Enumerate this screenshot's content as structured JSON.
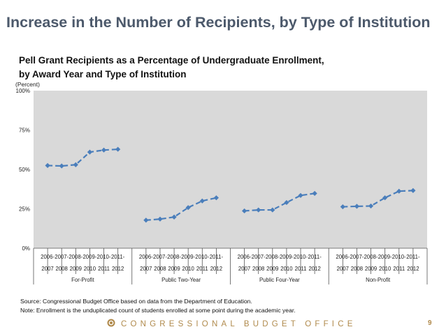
{
  "slide_title": "Increase in the Number of Recipients, by Type of Institution",
  "chart_title_line1": "Pell Grant Recipients as a Percentage of Undergraduate Enrollment,",
  "chart_title_line2": "by Award Year and Type of Institution",
  "footnotes": {
    "source": "Source: Congressional Budget Office based on data from the Department of Education.",
    "note": "Note: Enrollment is the unduplicated count of students enrolled at some point during the academic year."
  },
  "footer": {
    "org": "CONGRESSIONAL BUDGET OFFICE",
    "page_number": "9",
    "logo": "cbo-seal-icon"
  },
  "chart_data": {
    "type": "line",
    "ylabel": "(Percent)",
    "ylim": [
      0,
      100
    ],
    "yticks": [
      "0%",
      "25%",
      "50%",
      "75%",
      "100%"
    ],
    "categories": [
      [
        "2006-",
        "2007"
      ],
      [
        "2007-",
        "2008"
      ],
      [
        "2008-",
        "2009"
      ],
      [
        "2009-",
        "2010"
      ],
      [
        "2010-",
        "2011"
      ],
      [
        "2011-",
        "2012"
      ]
    ],
    "groups": [
      {
        "name": "For-Profit",
        "values": [
          52.5,
          52.2,
          53.0,
          61.0,
          62.3,
          62.8
        ]
      },
      {
        "name": "Public Two-Year",
        "values": [
          17.8,
          18.5,
          19.8,
          25.8,
          30.0,
          32.0
        ]
      },
      {
        "name": "Public Four-Year",
        "values": [
          23.7,
          24.3,
          24.3,
          29.0,
          33.5,
          34.8
        ]
      },
      {
        "name": "Non-Profit",
        "values": [
          26.3,
          26.6,
          26.8,
          32.0,
          36.2,
          36.6
        ]
      }
    ],
    "grid": false,
    "legend": "none",
    "colors": {
      "plot_bg": "#d9d9d9",
      "line": "#4a7ebb",
      "marker": "#4a7ebb"
    }
  }
}
